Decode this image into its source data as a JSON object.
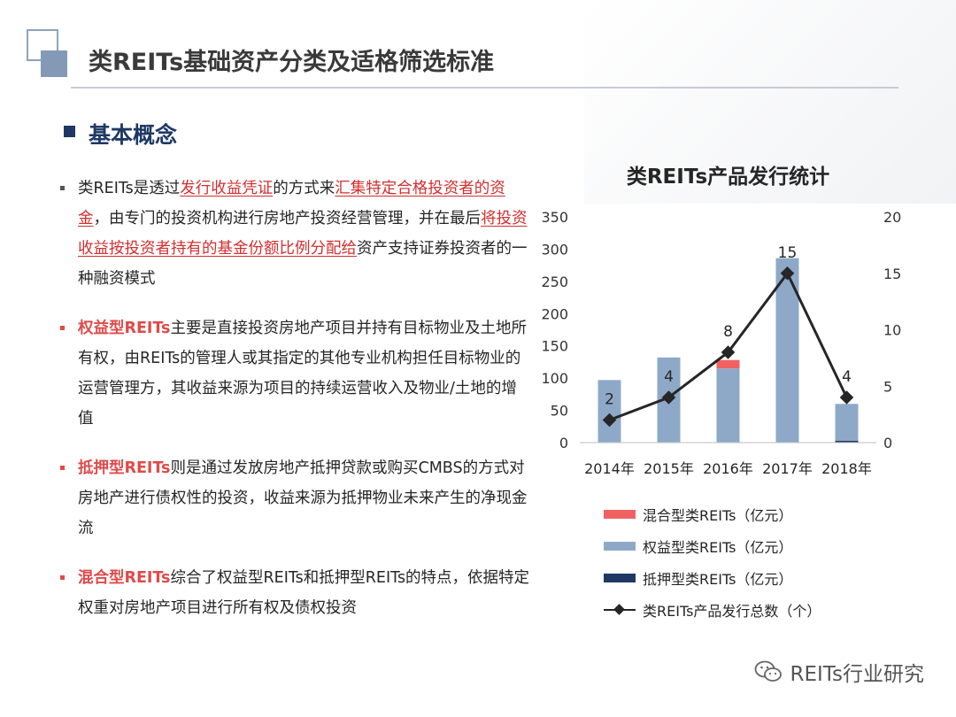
{
  "header": {
    "title": "类REITs基础资产分类及适格筛选标准"
  },
  "section": {
    "title": "基本概念"
  },
  "bullets": [
    {
      "marker": "plain",
      "segments": [
        {
          "text": "类REITs是透过",
          "style": "normal"
        },
        {
          "text": "发行收益凭证",
          "style": "highlight"
        },
        {
          "text": "的方式来",
          "style": "normal"
        },
        {
          "text": "汇集特定合格投资者的资金",
          "style": "highlight"
        },
        {
          "text": "，由专门的投资机构进行房地产投资经营管理，并在最后",
          "style": "normal"
        },
        {
          "text": "将投资收益按投资者持有的基金份额比例分配给",
          "style": "highlight"
        },
        {
          "text": "资产支持证券投资者的一种融资模式",
          "style": "normal"
        }
      ]
    },
    {
      "marker": "red",
      "segments": [
        {
          "text": "权益型REITs",
          "style": "keyword"
        },
        {
          "text": "主要是直接投资房地产项目并持有目标物业及土地所有权，由REITs的管理人或其指定的其他专业机构担任目标物业的运营管理方，其收益来源为项目的持续运营收入及物业/土地的增值",
          "style": "normal"
        }
      ]
    },
    {
      "marker": "red",
      "segments": [
        {
          "text": "抵押型REITs",
          "style": "keyword"
        },
        {
          "text": "则是通过发放房地产抵押贷款或购买CMBS的方式对房地产进行债权性的投资，收益来源为抵押物业未来产生的净现金流",
          "style": "normal"
        }
      ]
    },
    {
      "marker": "red",
      "segments": [
        {
          "text": "混合型REITs",
          "style": "keyword"
        },
        {
          "text": "综合了权益型REITs和抵押型REITs的特点，依据特定权重对房地产项目进行所有权及债权投资",
          "style": "normal"
        }
      ]
    }
  ],
  "chart_data": {
    "type": "bar",
    "title": "类REITs产品发行统计",
    "categories": [
      "2014年",
      "2015年",
      "2016年",
      "2017年",
      "2018年"
    ],
    "stacked": true,
    "series": [
      {
        "name": "抵押型类REITs（亿元）",
        "values": [
          0,
          0,
          0,
          0,
          3
        ],
        "color": "#1f3864",
        "axis": "left"
      },
      {
        "name": "权益型类REITs（亿元）",
        "values": [
          97,
          132,
          115,
          286,
          57
        ],
        "color": "#8ea9c8",
        "axis": "left"
      },
      {
        "name": "混合型类REITs（亿元）",
        "values": [
          0,
          0,
          13,
          0,
          0
        ],
        "color": "#f06262",
        "axis": "left"
      }
    ],
    "line": {
      "name": "类REITs产品发行总数（个）",
      "values": [
        2,
        4,
        8,
        15,
        4
      ],
      "labels": [
        "2",
        "4",
        "8",
        "15",
        "4"
      ],
      "color": "#262626",
      "axis": "right"
    },
    "ylim": [
      0,
      350
    ],
    "yticks": [
      "0",
      "50",
      "100",
      "150",
      "200",
      "250",
      "300",
      "350"
    ],
    "y2lim": [
      0,
      20
    ],
    "y2ticks": [
      "0",
      "5",
      "10",
      "15",
      "20"
    ],
    "legend_order": [
      {
        "name": "混合型类REITs（亿元）",
        "kind": "bar",
        "color": "#f06262"
      },
      {
        "name": "权益型类REITs（亿元）",
        "kind": "bar",
        "color": "#8ea9c8"
      },
      {
        "name": "抵押型类REITs（亿元）",
        "kind": "bar",
        "color": "#1f3864"
      },
      {
        "name": "类REITs产品发行总数（个）",
        "kind": "line",
        "color": "#262626"
      }
    ],
    "legend_position": "bottom",
    "grid": false
  },
  "watermark": {
    "text": "REITs行业研究",
    "icon": "wechat-icon"
  }
}
